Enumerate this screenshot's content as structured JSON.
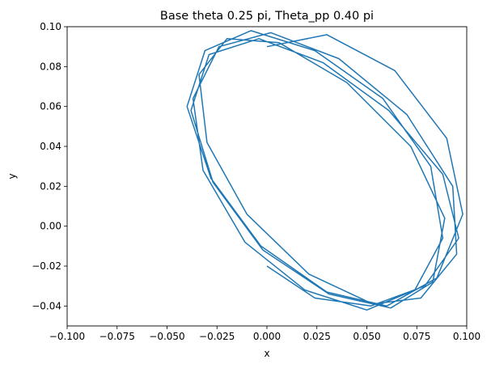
{
  "chart_data": {
    "type": "line",
    "title": "Base theta 0.25 pi, Theta_pp 0.40 pi",
    "xlabel": "x",
    "ylabel": "y",
    "xlim": [
      -0.1,
      0.1
    ],
    "ylim": [
      -0.05,
      0.1
    ],
    "x_ticks": [
      -0.1,
      -0.075,
      -0.05,
      -0.025,
      0.0,
      0.025,
      0.05,
      0.075,
      0.1
    ],
    "x_tick_labels": [
      "−0.100",
      "−0.075",
      "−0.050",
      "−0.025",
      "0.000",
      "0.025",
      "0.050",
      "0.075",
      "0.100"
    ],
    "y_ticks": [
      -0.04,
      -0.02,
      0.0,
      0.02,
      0.04,
      0.06,
      0.08,
      0.1
    ],
    "y_tick_labels": [
      "−0.04",
      "−0.02",
      "0.00",
      "0.02",
      "0.04",
      "0.06",
      "0.08",
      "0.10"
    ],
    "grid": false,
    "legend": "none",
    "series": [
      {
        "color": "#1f77b4",
        "x": [
          0.0,
          0.024,
          0.052,
          0.079,
          0.096,
          0.088,
          0.061,
          0.028,
          -0.004,
          -0.029,
          -0.038,
          -0.027,
          -0.002,
          0.031,
          0.062,
          0.083,
          0.089,
          0.072,
          0.04,
          0.006,
          -0.02,
          -0.034,
          -0.03,
          -0.01,
          0.021,
          0.053,
          0.077,
          0.095,
          0.093,
          0.07,
          0.036,
          0.002,
          -0.024,
          -0.037,
          -0.032,
          -0.011,
          0.019,
          0.05,
          0.074,
          0.088,
          0.082,
          0.058,
          0.024,
          -0.008,
          -0.031,
          -0.04,
          -0.028,
          -0.003,
          0.03,
          0.06,
          0.085,
          0.098,
          0.09,
          0.064,
          0.03,
          0.0
        ],
        "y": [
          -0.02,
          -0.036,
          -0.04,
          -0.03,
          -0.006,
          0.026,
          0.058,
          0.082,
          0.094,
          0.086,
          0.058,
          0.022,
          -0.012,
          -0.034,
          -0.041,
          -0.028,
          0.004,
          0.04,
          0.072,
          0.092,
          0.094,
          0.076,
          0.042,
          0.006,
          -0.024,
          -0.039,
          -0.036,
          -0.014,
          0.02,
          0.056,
          0.084,
          0.097,
          0.09,
          0.064,
          0.028,
          -0.008,
          -0.032,
          -0.042,
          -0.032,
          -0.006,
          0.03,
          0.064,
          0.088,
          0.098,
          0.088,
          0.06,
          0.024,
          -0.01,
          -0.033,
          -0.04,
          -0.026,
          0.006,
          0.044,
          0.078,
          0.096,
          0.09
        ]
      }
    ]
  }
}
